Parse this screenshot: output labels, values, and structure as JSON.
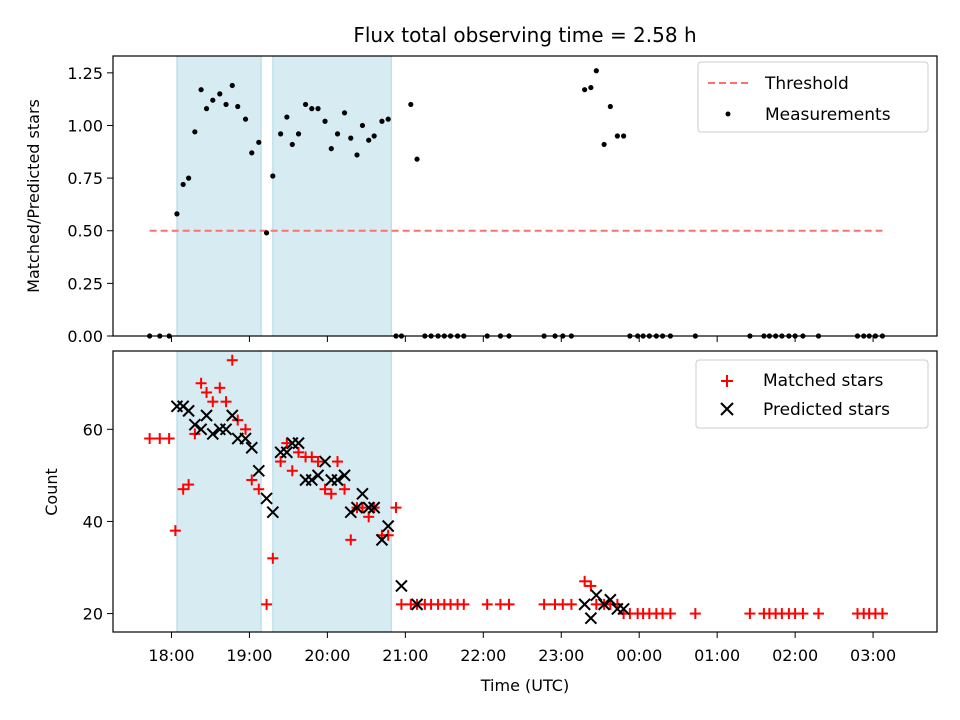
{
  "chart_data": [
    {
      "type": "scatter",
      "title": "Flux total observing time = 2.58 h",
      "xlabel": "",
      "ylabel": "Matched/Predicted stars",
      "xlim": [
        17.25,
        27.82
      ],
      "ylim": [
        0,
        1.33
      ],
      "yticks": [
        0,
        0.25,
        0.5,
        0.75,
        1.0,
        1.25
      ],
      "ytick_labels": [
        "0.00",
        "0.25",
        "0.50",
        "0.75",
        "1.00",
        "1.25"
      ],
      "threshold": {
        "label": "Threshold",
        "value": 0.5,
        "x_range": [
          17.72,
          27.12
        ],
        "color": "#ff6f6f"
      },
      "legend": [
        "Threshold",
        "Measurements"
      ],
      "legend_position": "upper-right",
      "bands": [
        [
          18.07,
          19.15
        ],
        [
          19.3,
          20.82
        ]
      ],
      "series": [
        {
          "name": "Measurements",
          "color": "#000000",
          "x": [
            17.72,
            17.85,
            17.97,
            18.07,
            18.15,
            18.22,
            18.3,
            18.38,
            18.45,
            18.53,
            18.62,
            18.7,
            18.78,
            18.85,
            18.95,
            19.03,
            19.12,
            19.22,
            19.3,
            19.4,
            19.48,
            19.55,
            19.63,
            19.72,
            19.8,
            19.88,
            19.97,
            20.05,
            20.13,
            20.22,
            20.3,
            20.38,
            20.45,
            20.53,
            20.6,
            20.7,
            20.78,
            20.88,
            20.95,
            21.07,
            21.15,
            21.25,
            21.33,
            21.42,
            21.5,
            21.58,
            21.67,
            21.75,
            22.05,
            22.22,
            22.33,
            22.78,
            22.92,
            23.02,
            23.13,
            23.3,
            23.38,
            23.45,
            23.55,
            23.63,
            23.72,
            23.8,
            23.88,
            23.98,
            24.05,
            24.13,
            24.22,
            24.3,
            24.4,
            24.72,
            25.42,
            25.6,
            25.67,
            25.75,
            25.83,
            25.92,
            26.0,
            26.1,
            26.3,
            26.8,
            26.88,
            26.95,
            27.03,
            27.12
          ],
          "y": [
            0,
            0,
            0,
            0.58,
            0.72,
            0.75,
            0.97,
            1.17,
            1.08,
            1.12,
            1.15,
            1.1,
            1.19,
            1.09,
            1.03,
            0.87,
            0.92,
            0.49,
            0.76,
            0.96,
            1.04,
            0.91,
            0.96,
            1.1,
            1.08,
            1.08,
            1.02,
            0.89,
            0.96,
            1.06,
            0.94,
            0.86,
            1.0,
            0.93,
            0.95,
            1.02,
            1.03,
            0,
            0,
            1.1,
            0.84,
            0,
            0,
            0,
            0,
            0,
            0,
            0,
            0,
            0,
            0,
            0,
            0,
            0,
            0,
            1.17,
            1.18,
            1.26,
            0.91,
            1.09,
            0.95,
            0.95,
            0,
            0,
            0,
            0,
            0,
            0,
            0,
            0,
            0,
            0,
            0,
            0,
            0,
            0,
            0,
            0,
            0,
            0,
            0,
            0,
            0,
            0
          ]
        }
      ]
    },
    {
      "type": "scatter",
      "title": "",
      "xlabel": "Time (UTC)",
      "ylabel": "Count",
      "xlim": [
        17.25,
        27.82
      ],
      "ylim": [
        16,
        77
      ],
      "yticks": [
        20,
        40,
        60
      ],
      "ytick_labels": [
        "20",
        "40",
        "60"
      ],
      "xticks": [
        18,
        19,
        20,
        21,
        22,
        23,
        24,
        25,
        26,
        27
      ],
      "xtick_labels": [
        "18:00",
        "19:00",
        "20:00",
        "21:00",
        "22:00",
        "23:00",
        "00:00",
        "01:00",
        "02:00",
        "03:00"
      ],
      "legend": [
        "Matched stars",
        "Predicted stars"
      ],
      "legend_position": "upper-right",
      "bands": [
        [
          18.07,
          19.15
        ],
        [
          19.3,
          20.82
        ]
      ],
      "series": [
        {
          "name": "Matched stars",
          "marker": "plus",
          "color": "#ff0000",
          "x": [
            17.72,
            17.85,
            17.97,
            18.05,
            18.15,
            18.22,
            18.3,
            18.38,
            18.45,
            18.53,
            18.62,
            18.7,
            18.78,
            18.85,
            18.95,
            19.03,
            19.12,
            19.22,
            19.3,
            19.4,
            19.48,
            19.55,
            19.63,
            19.72,
            19.8,
            19.88,
            19.97,
            20.05,
            20.13,
            20.22,
            20.3,
            20.38,
            20.45,
            20.53,
            20.6,
            20.7,
            20.78,
            20.88,
            20.95,
            21.07,
            21.15,
            21.25,
            21.33,
            21.42,
            21.5,
            21.58,
            21.67,
            21.75,
            22.05,
            22.22,
            22.33,
            22.78,
            22.92,
            23.02,
            23.13,
            23.3,
            23.38,
            23.45,
            23.55,
            23.63,
            23.72,
            23.8,
            23.88,
            23.98,
            24.05,
            24.13,
            24.22,
            24.3,
            24.4,
            24.72,
            25.42,
            25.6,
            25.67,
            25.75,
            25.83,
            25.92,
            26.0,
            26.1,
            26.3,
            26.8,
            26.88,
            26.95,
            27.03,
            27.12
          ],
          "y": [
            58,
            58,
            58,
            38,
            47,
            48,
            59,
            70,
            68,
            66,
            69,
            66,
            75,
            62,
            60,
            49,
            47,
            22,
            32,
            53,
            57,
            51,
            55,
            54,
            54,
            53,
            47,
            46,
            53,
            47,
            36,
            43,
            43,
            41,
            43,
            37,
            37,
            43,
            22,
            22,
            22,
            22,
            22,
            22,
            22,
            22,
            22,
            22,
            22,
            22,
            22,
            22,
            22,
            22,
            22,
            27,
            26,
            22,
            22,
            22,
            22,
            20,
            20,
            20,
            20,
            20,
            20,
            20,
            20,
            20,
            20,
            20,
            20,
            20,
            20,
            20,
            20,
            20,
            20,
            20,
            20,
            20,
            20,
            20
          ]
        },
        {
          "name": "Predicted stars",
          "marker": "x",
          "color": "#000000",
          "x": [
            18.07,
            18.15,
            18.22,
            18.3,
            18.38,
            18.45,
            18.53,
            18.62,
            18.7,
            18.78,
            18.85,
            18.95,
            19.03,
            19.12,
            19.22,
            19.3,
            19.4,
            19.48,
            19.55,
            19.63,
            19.72,
            19.8,
            19.88,
            19.97,
            20.05,
            20.13,
            20.22,
            20.3,
            20.38,
            20.45,
            20.53,
            20.6,
            20.7,
            20.78,
            20.95,
            21.15,
            23.3,
            23.38,
            23.45,
            23.55,
            23.63,
            23.72,
            23.8
          ],
          "y": [
            65,
            65,
            64,
            61,
            60,
            63,
            59,
            60,
            60,
            63,
            58,
            58,
            56,
            51,
            45,
            42,
            55,
            55,
            57,
            57,
            49,
            49,
            50,
            53,
            49,
            49,
            50,
            42,
            43,
            46,
            43,
            43,
            36,
            39,
            26,
            22,
            22,
            19,
            24,
            22,
            23,
            21,
            21
          ]
        }
      ]
    }
  ]
}
